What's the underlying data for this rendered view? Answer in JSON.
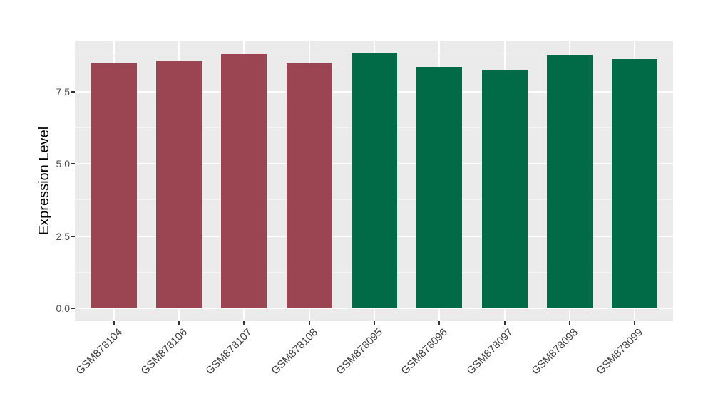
{
  "figure": {
    "background": "#ffffff",
    "panel_background": "#ebebeb",
    "grid_major_color": "#ffffff",
    "grid_minor_color": "#f5f5f5",
    "axis_text_color": "#4d4d4d",
    "axis_title_color": "#000000",
    "tick_mark_color": "#333333"
  },
  "chart_data": {
    "type": "bar",
    "title": "",
    "xlabel": "",
    "ylabel": "Expression Level",
    "categories": [
      "GSM878104",
      "GSM878106",
      "GSM878107",
      "GSM878108",
      "GSM878095",
      "GSM878096",
      "GSM878097",
      "GSM878098",
      "GSM878099"
    ],
    "series": [
      {
        "name": "expression_level",
        "values": [
          8.48,
          8.59,
          8.81,
          8.48,
          8.85,
          8.36,
          8.25,
          8.78,
          8.64
        ]
      }
    ],
    "groups": [
      "red",
      "red",
      "red",
      "red",
      "green",
      "green",
      "green",
      "green",
      "green"
    ],
    "group_colors": {
      "red": "#9b4452",
      "green": "#016b47"
    },
    "ylim": [
      -0.45,
      9.28
    ],
    "ytick_values": [
      0,
      2.5,
      5,
      7.5
    ],
    "ytick_labels": [
      "0.0",
      "2.5",
      "5.0",
      "7.5"
    ],
    "yminor_values": [
      1.25,
      3.75,
      6.25,
      8.75
    ],
    "grid": "on",
    "legend_position": "none",
    "bar_orientation": "vertical"
  }
}
